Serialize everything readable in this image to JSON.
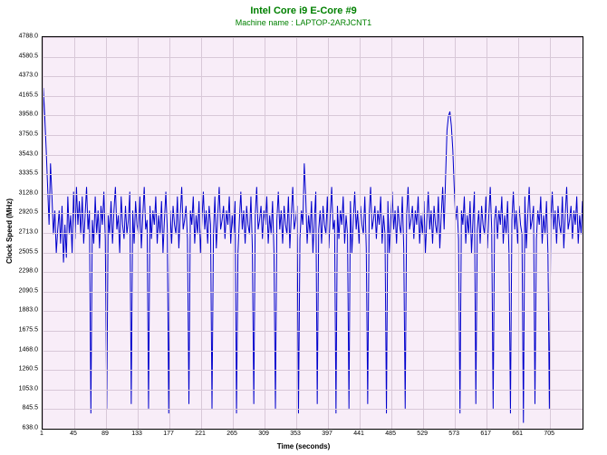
{
  "chart": {
    "type": "line",
    "title": "Intel Core i9 E-Core #9",
    "subtitle": "Machine name : LAPTOP-2ARJCNT1",
    "title_color": "#008000",
    "title_fontsize": 11,
    "subtitle_fontsize": 9,
    "xlabel": "Time (seconds)",
    "ylabel": "Clock Speed (MHz)",
    "label_fontsize": 8,
    "tick_fontsize": 7,
    "background_color": "#ffffff",
    "plot_bg_color": "#f8edf8",
    "grid_color": "#d8c8d8",
    "line_color": "#0000cc",
    "line_width": 1,
    "xlim": [
      1,
      750
    ],
    "ylim": [
      638.0,
      4788.0
    ],
    "yticks": [
      638.0,
      845.5,
      1053.0,
      1260.5,
      1468.0,
      1675.5,
      1883.0,
      2090.5,
      2298.0,
      2505.5,
      2713.0,
      2920.5,
      3128.0,
      3335.5,
      3543.0,
      3750.5,
      3958.0,
      4165.5,
      4373.0,
      4580.5,
      4788.0
    ],
    "xticks": [
      1,
      45,
      89,
      133,
      177,
      221,
      265,
      309,
      353,
      397,
      441,
      485,
      529,
      573,
      617,
      661,
      705
    ],
    "data": [
      [
        1,
        2600
      ],
      [
        2,
        4250
      ],
      [
        4,
        3950
      ],
      [
        6,
        3600
      ],
      [
        8,
        3200
      ],
      [
        10,
        2800
      ],
      [
        12,
        3450
      ],
      [
        14,
        3100
      ],
      [
        16,
        2700
      ],
      [
        18,
        2950
      ],
      [
        20,
        2500
      ],
      [
        22,
        2750
      ],
      [
        24,
        2950
      ],
      [
        26,
        2600
      ],
      [
        28,
        3000
      ],
      [
        30,
        2400
      ],
      [
        32,
        2800
      ],
      [
        34,
        2450
      ],
      [
        36,
        3100
      ],
      [
        38,
        2700
      ],
      [
        40,
        2900
      ],
      [
        42,
        2500
      ],
      [
        44,
        3150
      ],
      [
        46,
        2650
      ],
      [
        48,
        3200
      ],
      [
        50,
        2800
      ],
      [
        52,
        3050
      ],
      [
        54,
        2700
      ],
      [
        56,
        3100
      ],
      [
        58,
        2600
      ],
      [
        60,
        2900
      ],
      [
        62,
        3200
      ],
      [
        64,
        2750
      ],
      [
        66,
        2950
      ],
      [
        68,
        800
      ],
      [
        70,
        2850
      ],
      [
        72,
        2600
      ],
      [
        74,
        3100
      ],
      [
        76,
        2700
      ],
      [
        78,
        2950
      ],
      [
        80,
        2550
      ],
      [
        82,
        3000
      ],
      [
        84,
        2800
      ],
      [
        86,
        3150
      ],
      [
        88,
        2650
      ],
      [
        90,
        850
      ],
      [
        92,
        2900
      ],
      [
        94,
        2700
      ],
      [
        96,
        3050
      ],
      [
        98,
        2600
      ],
      [
        100,
        2950
      ],
      [
        102,
        3200
      ],
      [
        104,
        2750
      ],
      [
        106,
        2900
      ],
      [
        108,
        2500
      ],
      [
        110,
        3100
      ],
      [
        112,
        2800
      ],
      [
        114,
        2650
      ],
      [
        116,
        3000
      ],
      [
        118,
        2700
      ],
      [
        120,
        2850
      ],
      [
        122,
        3150
      ],
      [
        124,
        900
      ],
      [
        126,
        2950
      ],
      [
        128,
        2600
      ],
      [
        130,
        3050
      ],
      [
        132,
        2800
      ],
      [
        134,
        2700
      ],
      [
        136,
        3100
      ],
      [
        138,
        2550
      ],
      [
        140,
        2900
      ],
      [
        142,
        3200
      ],
      [
        144,
        2750
      ],
      [
        146,
        2850
      ],
      [
        148,
        850
      ],
      [
        150,
        3000
      ],
      [
        152,
        2650
      ],
      [
        154,
        2950
      ],
      [
        156,
        2800
      ],
      [
        158,
        3100
      ],
      [
        160,
        2600
      ],
      [
        162,
        2900
      ],
      [
        164,
        2700
      ],
      [
        166,
        3050
      ],
      [
        168,
        2500
      ],
      [
        170,
        2850
      ],
      [
        172,
        3150
      ],
      [
        174,
        2750
      ],
      [
        176,
        800
      ],
      [
        178,
        2950
      ],
      [
        180,
        2600
      ],
      [
        182,
        3000
      ],
      [
        184,
        2800
      ],
      [
        186,
        2700
      ],
      [
        188,
        3100
      ],
      [
        190,
        2550
      ],
      [
        192,
        2900
      ],
      [
        194,
        3200
      ],
      [
        196,
        2750
      ],
      [
        198,
        2850
      ],
      [
        200,
        3000
      ],
      [
        202,
        2650
      ],
      [
        204,
        900
      ],
      [
        206,
        2950
      ],
      [
        208,
        2800
      ],
      [
        210,
        3100
      ],
      [
        212,
        2600
      ],
      [
        214,
        2900
      ],
      [
        216,
        2700
      ],
      [
        218,
        3050
      ],
      [
        220,
        2500
      ],
      [
        222,
        2850
      ],
      [
        224,
        3150
      ],
      [
        226,
        2750
      ],
      [
        228,
        2950
      ],
      [
        230,
        2600
      ],
      [
        232,
        3000
      ],
      [
        234,
        2800
      ],
      [
        236,
        850
      ],
      [
        238,
        2700
      ],
      [
        240,
        3100
      ],
      [
        242,
        2550
      ],
      [
        244,
        2900
      ],
      [
        246,
        3200
      ],
      [
        248,
        2750
      ],
      [
        250,
        2850
      ],
      [
        252,
        3000
      ],
      [
        254,
        2650
      ],
      [
        256,
        2950
      ],
      [
        258,
        2800
      ],
      [
        260,
        3100
      ],
      [
        262,
        2600
      ],
      [
        264,
        2900
      ],
      [
        266,
        2700
      ],
      [
        268,
        3050
      ],
      [
        270,
        800
      ],
      [
        272,
        2500
      ],
      [
        274,
        2850
      ],
      [
        276,
        3150
      ],
      [
        278,
        2750
      ],
      [
        280,
        2950
      ],
      [
        282,
        2600
      ],
      [
        284,
        3000
      ],
      [
        286,
        2800
      ],
      [
        288,
        2700
      ],
      [
        290,
        3100
      ],
      [
        292,
        2550
      ],
      [
        294,
        900
      ],
      [
        296,
        2900
      ],
      [
        298,
        3200
      ],
      [
        300,
        2750
      ],
      [
        302,
        2850
      ],
      [
        304,
        3000
      ],
      [
        306,
        2650
      ],
      [
        308,
        2950
      ],
      [
        310,
        2800
      ],
      [
        312,
        3100
      ],
      [
        314,
        2600
      ],
      [
        316,
        2900
      ],
      [
        318,
        2700
      ],
      [
        320,
        3050
      ],
      [
        322,
        2500
      ],
      [
        324,
        850
      ],
      [
        326,
        2850
      ],
      [
        328,
        3150
      ],
      [
        330,
        2750
      ],
      [
        332,
        2950
      ],
      [
        334,
        2600
      ],
      [
        336,
        3000
      ],
      [
        338,
        2800
      ],
      [
        340,
        2700
      ],
      [
        342,
        3100
      ],
      [
        344,
        2550
      ],
      [
        346,
        2900
      ],
      [
        348,
        3200
      ],
      [
        350,
        2750
      ],
      [
        352,
        2850
      ],
      [
        354,
        3000
      ],
      [
        356,
        800
      ],
      [
        358,
        2650
      ],
      [
        360,
        2950
      ],
      [
        362,
        2800
      ],
      [
        364,
        3450
      ],
      [
        366,
        3100
      ],
      [
        368,
        2600
      ],
      [
        370,
        2900
      ],
      [
        372,
        2700
      ],
      [
        374,
        3050
      ],
      [
        376,
        2500
      ],
      [
        378,
        2850
      ],
      [
        380,
        3150
      ],
      [
        382,
        900
      ],
      [
        384,
        2750
      ],
      [
        386,
        2950
      ],
      [
        388,
        2600
      ],
      [
        390,
        3000
      ],
      [
        392,
        2800
      ],
      [
        394,
        2700
      ],
      [
        396,
        3100
      ],
      [
        398,
        2550
      ],
      [
        400,
        2900
      ],
      [
        402,
        3200
      ],
      [
        404,
        2750
      ],
      [
        406,
        2850
      ],
      [
        408,
        800
      ],
      [
        410,
        3000
      ],
      [
        412,
        2650
      ],
      [
        414,
        2950
      ],
      [
        416,
        2800
      ],
      [
        418,
        3100
      ],
      [
        420,
        2600
      ],
      [
        422,
        2900
      ],
      [
        424,
        2700
      ],
      [
        426,
        850
      ],
      [
        428,
        3050
      ],
      [
        430,
        2500
      ],
      [
        432,
        2850
      ],
      [
        434,
        3150
      ],
      [
        436,
        2750
      ],
      [
        438,
        2950
      ],
      [
        440,
        2600
      ],
      [
        442,
        3000
      ],
      [
        444,
        2800
      ],
      [
        446,
        2700
      ],
      [
        448,
        3100
      ],
      [
        450,
        2550
      ],
      [
        452,
        900
      ],
      [
        454,
        2900
      ],
      [
        456,
        3200
      ],
      [
        458,
        2750
      ],
      [
        460,
        2850
      ],
      [
        462,
        3000
      ],
      [
        464,
        2650
      ],
      [
        466,
        2950
      ],
      [
        468,
        2800
      ],
      [
        470,
        3100
      ],
      [
        472,
        2600
      ],
      [
        474,
        2900
      ],
      [
        476,
        2700
      ],
      [
        478,
        800
      ],
      [
        480,
        3050
      ],
      [
        482,
        2500
      ],
      [
        484,
        2850
      ],
      [
        486,
        3150
      ],
      [
        488,
        2750
      ],
      [
        490,
        2950
      ],
      [
        492,
        2600
      ],
      [
        494,
        3000
      ],
      [
        496,
        2800
      ],
      [
        498,
        2700
      ],
      [
        500,
        3100
      ],
      [
        502,
        2550
      ],
      [
        504,
        850
      ],
      [
        506,
        2900
      ],
      [
        508,
        3200
      ],
      [
        510,
        2750
      ],
      [
        512,
        2850
      ],
      [
        514,
        3000
      ],
      [
        516,
        2650
      ],
      [
        518,
        2950
      ],
      [
        520,
        2800
      ],
      [
        522,
        3100
      ],
      [
        524,
        2600
      ],
      [
        526,
        2900
      ],
      [
        528,
        2700
      ],
      [
        530,
        3050
      ],
      [
        532,
        2500
      ],
      [
        534,
        2850
      ],
      [
        536,
        3150
      ],
      [
        538,
        2750
      ],
      [
        540,
        2950
      ],
      [
        542,
        2600
      ],
      [
        544,
        3000
      ],
      [
        546,
        2800
      ],
      [
        548,
        2700
      ],
      [
        550,
        3100
      ],
      [
        552,
        2550
      ],
      [
        554,
        2900
      ],
      [
        556,
        3200
      ],
      [
        558,
        2750
      ],
      [
        560,
        3300
      ],
      [
        562,
        3800
      ],
      [
        564,
        3950
      ],
      [
        566,
        4000
      ],
      [
        568,
        3850
      ],
      [
        570,
        3600
      ],
      [
        572,
        3200
      ],
      [
        574,
        2850
      ],
      [
        576,
        3000
      ],
      [
        578,
        2650
      ],
      [
        580,
        800
      ],
      [
        582,
        2950
      ],
      [
        584,
        2800
      ],
      [
        586,
        3100
      ],
      [
        588,
        2600
      ],
      [
        590,
        2900
      ],
      [
        592,
        2700
      ],
      [
        594,
        3050
      ],
      [
        596,
        2500
      ],
      [
        598,
        2850
      ],
      [
        600,
        3150
      ],
      [
        602,
        900
      ],
      [
        604,
        2750
      ],
      [
        606,
        2950
      ],
      [
        608,
        2600
      ],
      [
        610,
        3000
      ],
      [
        612,
        2800
      ],
      [
        614,
        2700
      ],
      [
        616,
        3100
      ],
      [
        618,
        2550
      ],
      [
        620,
        2900
      ],
      [
        622,
        3200
      ],
      [
        624,
        2750
      ],
      [
        626,
        850
      ],
      [
        628,
        2850
      ],
      [
        630,
        3000
      ],
      [
        632,
        2650
      ],
      [
        634,
        2950
      ],
      [
        636,
        2800
      ],
      [
        638,
        3100
      ],
      [
        640,
        2600
      ],
      [
        642,
        2900
      ],
      [
        644,
        2700
      ],
      [
        646,
        3050
      ],
      [
        648,
        2500
      ],
      [
        650,
        800
      ],
      [
        652,
        2850
      ],
      [
        654,
        3150
      ],
      [
        656,
        2750
      ],
      [
        658,
        2950
      ],
      [
        660,
        2600
      ],
      [
        662,
        3000
      ],
      [
        664,
        2800
      ],
      [
        666,
        2700
      ],
      [
        668,
        700
      ],
      [
        670,
        3100
      ],
      [
        672,
        2550
      ],
      [
        674,
        2900
      ],
      [
        676,
        3200
      ],
      [
        678,
        2750
      ],
      [
        680,
        2850
      ],
      [
        682,
        3000
      ],
      [
        684,
        900
      ],
      [
        686,
        2650
      ],
      [
        688,
        2950
      ],
      [
        690,
        2800
      ],
      [
        692,
        3100
      ],
      [
        694,
        2600
      ],
      [
        696,
        2900
      ],
      [
        698,
        2700
      ],
      [
        700,
        3050
      ],
      [
        702,
        2500
      ],
      [
        704,
        850
      ],
      [
        706,
        2850
      ],
      [
        708,
        3150
      ],
      [
        710,
        2750
      ],
      [
        712,
        2950
      ],
      [
        714,
        2600
      ],
      [
        716,
        3000
      ],
      [
        718,
        2800
      ],
      [
        720,
        2700
      ],
      [
        722,
        3100
      ],
      [
        724,
        2550
      ],
      [
        726,
        2900
      ],
      [
        728,
        3200
      ],
      [
        730,
        2750
      ],
      [
        732,
        2850
      ],
      [
        734,
        3000
      ],
      [
        736,
        2650
      ],
      [
        738,
        2950
      ],
      [
        740,
        2800
      ],
      [
        742,
        3100
      ],
      [
        744,
        2600
      ],
      [
        746,
        2900
      ],
      [
        748,
        2700
      ],
      [
        750,
        3050
      ]
    ]
  }
}
